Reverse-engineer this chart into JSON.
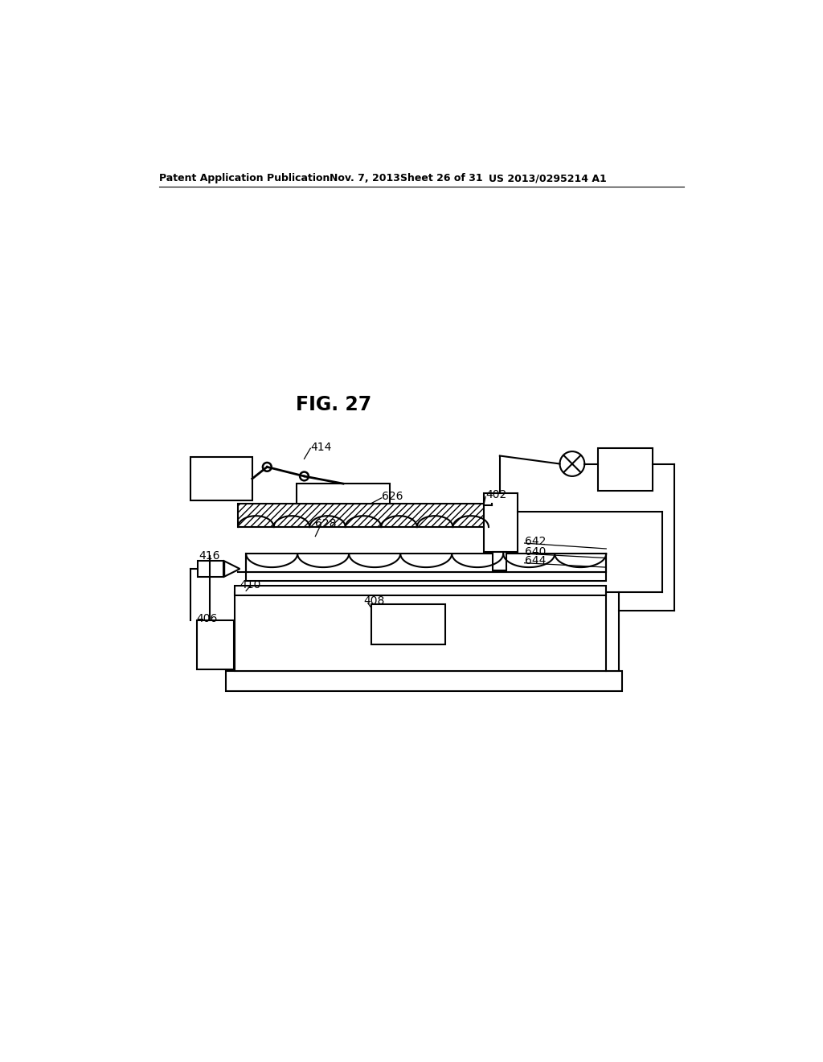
{
  "fig_label": "FIG. 27",
  "header_left": "Patent Application Publication",
  "header_mid": "Nov. 7, 2013   Sheet 26 of 31",
  "header_right": "US 2013/0295214 A1",
  "bg_color": "#ffffff",
  "line_color": "#000000"
}
